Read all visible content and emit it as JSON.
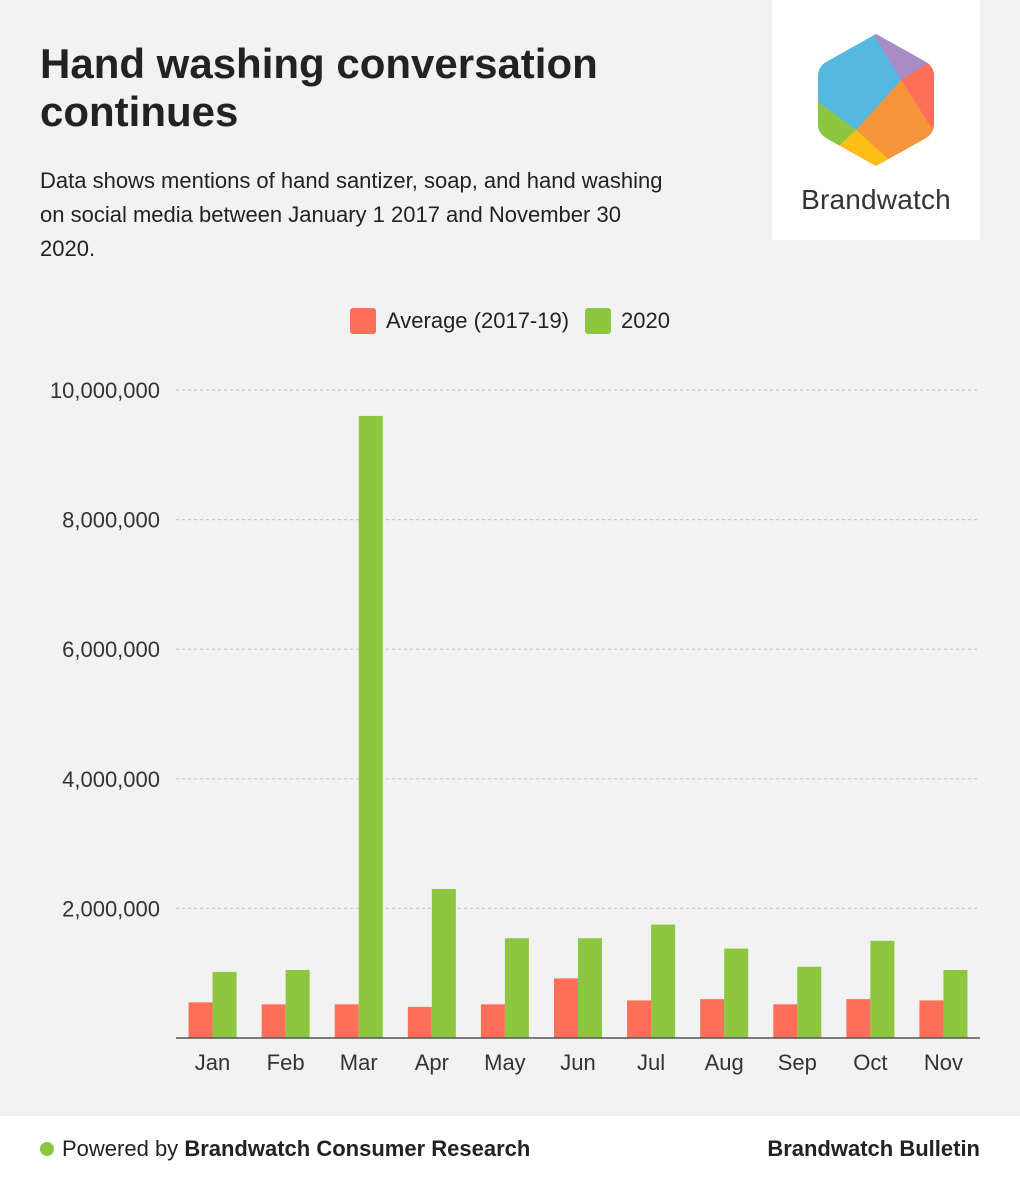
{
  "header": {
    "title": "Hand washing conversation continues",
    "subtitle": "Data shows mentions of hand santizer, soap, and hand washing on social media between January 1 2017 and November 30 2020."
  },
  "logo": {
    "name": "Brandwatch",
    "icon": "brandwatch-hexagon-logo"
  },
  "colors": {
    "average": "#ff6f59",
    "y2020": "#8dc63f",
    "grid": "#c8c8c8",
    "axis": "#555555"
  },
  "chart_data": {
    "type": "bar",
    "title": "Hand washing conversation continues",
    "categories": [
      "Jan",
      "Feb",
      "Mar",
      "Apr",
      "May",
      "Jun",
      "Jul",
      "Aug",
      "Sep",
      "Oct",
      "Nov"
    ],
    "series": [
      {
        "name": "Average (2017-19)",
        "values": [
          550000,
          520000,
          520000,
          480000,
          520000,
          920000,
          580000,
          600000,
          520000,
          600000,
          580000
        ]
      },
      {
        "name": "2020",
        "values": [
          1020000,
          1050000,
          9600000,
          2300000,
          1540000,
          1540000,
          1750000,
          1380000,
          1100000,
          1500000,
          1050000
        ]
      }
    ],
    "yticks": [
      "2,000,000",
      "4,000,000",
      "6,000,000",
      "8,000,000",
      "10,000,000"
    ],
    "ytick_values": [
      2000000,
      4000000,
      6000000,
      8000000,
      10000000
    ],
    "ylim": [
      0,
      10000000
    ],
    "xlabel": "",
    "ylabel": "",
    "legend_position": "top-center",
    "grid": true
  },
  "footer": {
    "powered_prefix": "Powered by",
    "powered_brand": "Brandwatch Consumer Research",
    "right": "Brandwatch Bulletin"
  }
}
